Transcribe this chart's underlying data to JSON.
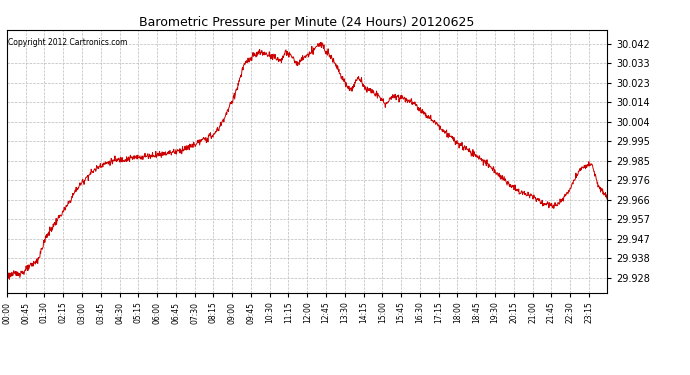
{
  "title": "Barometric Pressure per Minute (24 Hours) 20120625",
  "copyright": "Copyright 2012 Cartronics.com",
  "line_color": "#cc0000",
  "background_color": "#ffffff",
  "grid_color": "#bbbbbb",
  "yticks": [
    29.928,
    29.938,
    29.947,
    29.957,
    29.966,
    29.976,
    29.985,
    29.995,
    30.004,
    30.014,
    30.023,
    30.033,
    30.042
  ],
  "ylim": [
    29.921,
    30.049
  ],
  "xtick_labels": [
    "00:00",
    "00:45",
    "01:30",
    "02:15",
    "03:00",
    "03:45",
    "04:30",
    "05:15",
    "06:00",
    "06:45",
    "07:30",
    "08:15",
    "09:00",
    "09:45",
    "10:30",
    "11:15",
    "12:00",
    "12:45",
    "13:30",
    "14:15",
    "15:00",
    "15:45",
    "16:30",
    "17:15",
    "18:00",
    "18:45",
    "19:30",
    "20:15",
    "21:00",
    "21:45",
    "22:30",
    "23:15"
  ],
  "key_times": [
    0,
    0.028,
    0.052,
    0.065,
    0.083,
    0.1,
    0.115,
    0.135,
    0.155,
    0.175,
    0.195,
    0.22,
    0.245,
    0.265,
    0.285,
    0.305,
    0.325,
    0.345,
    0.355,
    0.365,
    0.375,
    0.385,
    0.395,
    0.41,
    0.42,
    0.435,
    0.445,
    0.455,
    0.465,
    0.475,
    0.485,
    0.495,
    0.505,
    0.515,
    0.525,
    0.535,
    0.545,
    0.555,
    0.565,
    0.575,
    0.585,
    0.6,
    0.615,
    0.63,
    0.645,
    0.66,
    0.675,
    0.69,
    0.705,
    0.72,
    0.735,
    0.75,
    0.765,
    0.78,
    0.795,
    0.81,
    0.825,
    0.835,
    0.845,
    0.855,
    0.865,
    0.875,
    0.885,
    0.895,
    0.905,
    0.915,
    0.925,
    0.935,
    0.945,
    0.955,
    0.965,
    0.975,
    0.985,
    1.0
  ],
  "key_vals": [
    29.929,
    29.931,
    29.937,
    29.948,
    29.956,
    29.963,
    29.971,
    29.978,
    29.983,
    29.985,
    29.986,
    29.987,
    29.988,
    29.989,
    29.99,
    29.992,
    29.995,
    29.998,
    30.002,
    30.008,
    30.014,
    30.022,
    30.032,
    30.036,
    30.038,
    30.037,
    30.036,
    30.034,
    30.038,
    30.036,
    30.032,
    30.036,
    30.037,
    30.041,
    30.042,
    30.038,
    30.034,
    30.028,
    30.022,
    30.02,
    30.026,
    30.02,
    30.018,
    30.013,
    30.017,
    30.016,
    30.014,
    30.01,
    30.006,
    30.002,
    29.998,
    29.994,
    29.991,
    29.988,
    29.985,
    29.981,
    29.977,
    29.974,
    29.972,
    29.97,
    29.969,
    29.968,
    29.966,
    29.964,
    29.964,
    29.963,
    29.966,
    29.97,
    29.976,
    29.981,
    29.983,
    29.983,
    29.973,
    29.967
  ]
}
